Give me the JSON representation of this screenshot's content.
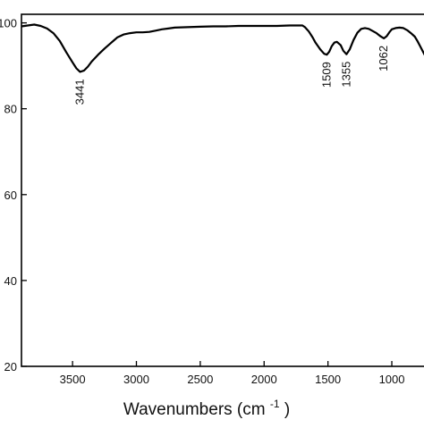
{
  "chart_data": {
    "type": "line",
    "title": "",
    "xlabel": "Wavenumbers (cm",
    "xlabel_sup": "-1",
    "xlabel_close": ")",
    "ylabel": "",
    "xlim": [
      3900,
      720
    ],
    "ylim": [
      20,
      102
    ],
    "x_reversed": true,
    "grid": false,
    "x_ticks": [
      3500,
      3000,
      2500,
      2000,
      1500,
      1000
    ],
    "x_tick_labels": [
      "3500",
      "3000",
      "2500",
      "2000",
      "1500",
      "1000"
    ],
    "y_ticks": [
      20,
      40,
      60,
      80,
      100
    ],
    "y_tick_labels": [
      "20",
      "40",
      "60",
      "80",
      "100"
    ],
    "line_color": "#000000",
    "series": [
      {
        "x": [
          3900,
          3850,
          3800,
          3750,
          3700,
          3650,
          3600,
          3550,
          3500,
          3470,
          3441,
          3410,
          3380,
          3350,
          3300,
          3250,
          3200,
          3150,
          3100,
          3050,
          3000,
          2950,
          2900,
          2850,
          2800,
          2750,
          2700,
          2600,
          2500,
          2400,
          2300,
          2200,
          2100,
          2000,
          1900,
          1800,
          1700,
          1680,
          1650,
          1620,
          1600,
          1560,
          1530,
          1509,
          1490,
          1470,
          1450,
          1430,
          1400,
          1380,
          1355,
          1330,
          1300,
          1270,
          1240,
          1210,
          1180,
          1150,
          1120,
          1090,
          1062,
          1040,
          1020,
          1000,
          970,
          940,
          910,
          880,
          850,
          820,
          800,
          780,
          760,
          740,
          720
        ],
        "y": [
          99.2,
          99.4,
          99.6,
          99.3,
          98.7,
          97.6,
          95.8,
          93.2,
          90.8,
          89.4,
          88.6,
          88.9,
          89.8,
          91.0,
          92.6,
          94.0,
          95.3,
          96.6,
          97.3,
          97.6,
          97.8,
          97.8,
          97.9,
          98.2,
          98.5,
          98.7,
          98.9,
          99.0,
          99.1,
          99.2,
          99.2,
          99.3,
          99.3,
          99.3,
          99.3,
          99.4,
          99.4,
          99.0,
          98.0,
          96.6,
          95.5,
          93.8,
          92.8,
          92.6,
          93.3,
          94.6,
          95.4,
          95.6,
          94.8,
          93.5,
          92.7,
          93.8,
          96.0,
          97.7,
          98.6,
          98.8,
          98.6,
          98.1,
          97.6,
          96.9,
          96.4,
          96.9,
          97.8,
          98.5,
          98.8,
          98.9,
          98.8,
          98.3,
          97.6,
          96.8,
          95.8,
          94.7,
          93.5,
          92.4,
          91.4
        ]
      }
    ],
    "annotations": [
      {
        "text": "3441",
        "x": 3441,
        "y": 88.6
      },
      {
        "text": "1509",
        "x": 1509,
        "y": 92.6
      },
      {
        "text": "1355",
        "x": 1355,
        "y": 92.7
      },
      {
        "text": "1062",
        "x": 1062,
        "y": 96.4
      }
    ]
  }
}
